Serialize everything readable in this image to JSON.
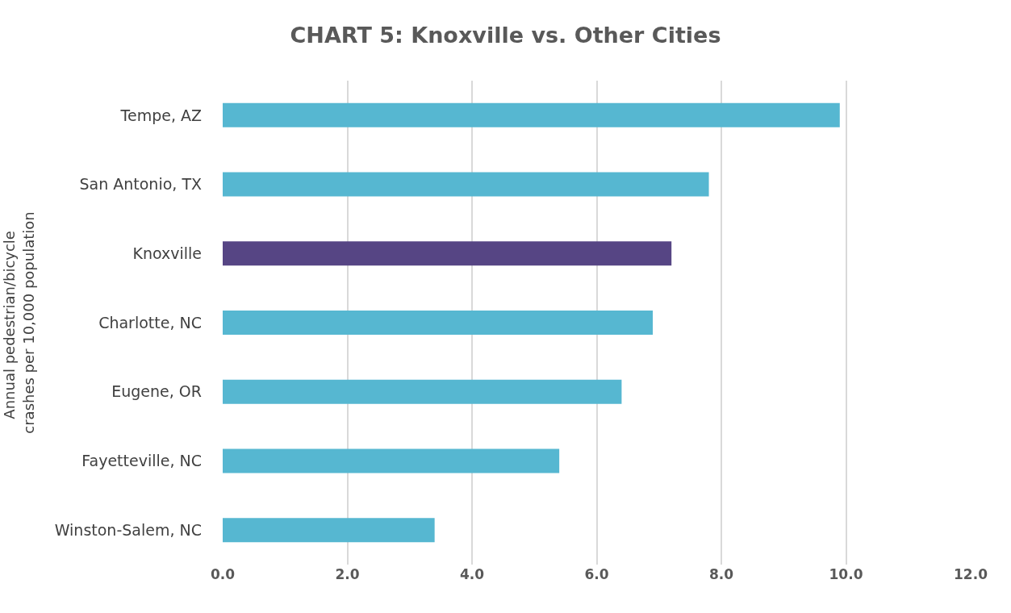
{
  "chart_data": {
    "type": "bar",
    "orientation": "horizontal",
    "title": "CHART 5: Knoxville vs. Other Cities",
    "ylabel": "Annual pedestrian/bicycle crashes per 10,000 population",
    "categories": [
      "Tempe, AZ",
      "San Antonio, TX",
      "Knoxville",
      "Charlotte, NC",
      "Eugene, OR",
      "Fayetteville, NC",
      "Winston-Salem, NC"
    ],
    "values": [
      9.9,
      7.8,
      7.2,
      6.9,
      6.4,
      5.4,
      3.4
    ],
    "colors": [
      "#56b7d1",
      "#56b7d1",
      "#564584",
      "#56b7d1",
      "#56b7d1",
      "#56b7d1",
      "#56b7d1"
    ],
    "xlim": [
      0,
      12
    ],
    "xticks": [
      {
        "value": 0,
        "label": "0.0"
      },
      {
        "value": 2,
        "label": "2.0"
      },
      {
        "value": 4,
        "label": "4.0"
      },
      {
        "value": 6,
        "label": "6.0"
      },
      {
        "value": 8,
        "label": "8.0"
      },
      {
        "value": 10,
        "label": "10.0"
      },
      {
        "value": 12,
        "label": "12.0"
      }
    ],
    "grid": "x"
  }
}
